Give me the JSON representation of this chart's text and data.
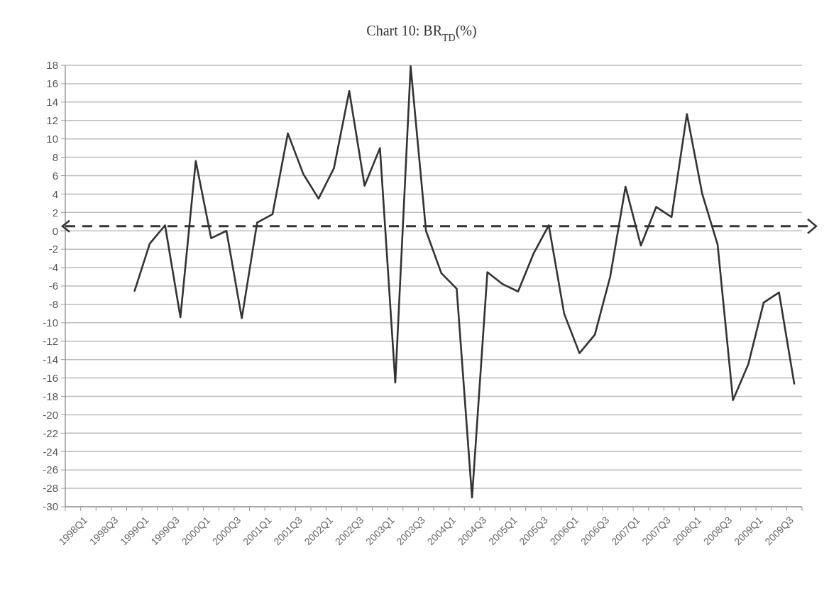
{
  "chart_data": {
    "type": "line",
    "title": "Chart 10: BR$_{TD}$(%)",
    "categories": [
      "1998Q1",
      null,
      "1998Q3",
      null,
      "1999Q1",
      null,
      "1999Q3",
      null,
      "2000Q1",
      null,
      "2000Q3",
      null,
      "2001Q1",
      null,
      "2001Q3",
      null,
      "2002Q1",
      null,
      "2002Q3",
      null,
      "2003Q1",
      null,
      "2003Q3",
      null,
      "2004Q1",
      null,
      "2004Q3",
      null,
      "2005Q1",
      null,
      "2005Q3",
      null,
      "2006Q1",
      null,
      "2006Q3",
      null,
      "2007Q1",
      null,
      "2007Q3",
      null,
      "2008Q1",
      null,
      "2008Q3",
      null,
      "2009Q1",
      null,
      "2009Q3",
      null
    ],
    "series": [
      {
        "color": "#333333",
        "values": [
          null,
          null,
          null,
          null,
          -6.6,
          -1.4,
          0.6,
          -9.4,
          7.6,
          -0.8,
          0,
          -9.5,
          0.9,
          1.8,
          10.6,
          6.2,
          3.5,
          6.8,
          15.2,
          4.9,
          9.0,
          -16.5,
          17.9,
          0,
          -4.6,
          -6.3,
          -29,
          -4.5,
          -5.8,
          -6.6,
          -2.5,
          0.6,
          -9,
          -13.3,
          -11.3,
          -5,
          4.8,
          -1.6,
          2.6,
          1.5,
          12.7,
          4,
          -1.5,
          -18.4,
          -14.5,
          -7.8,
          -6.7,
          -16.7
        ]
      }
    ],
    "ylim": [
      -30,
      18
    ],
    "yticks": [
      -30,
      -28,
      -26,
      -24,
      -22,
      -20,
      -18,
      -16,
      -14,
      -12,
      -10,
      -8,
      -6,
      -4,
      -2,
      0,
      2,
      4,
      6,
      8,
      10,
      12,
      14,
      16,
      18
    ],
    "grid": "y",
    "marker": "none",
    "line_style": "solid",
    "ref_lines": [
      {
        "axis": "y",
        "value": 0.5,
        "color": "#333333",
        "line_style": "dashed"
      }
    ]
  }
}
